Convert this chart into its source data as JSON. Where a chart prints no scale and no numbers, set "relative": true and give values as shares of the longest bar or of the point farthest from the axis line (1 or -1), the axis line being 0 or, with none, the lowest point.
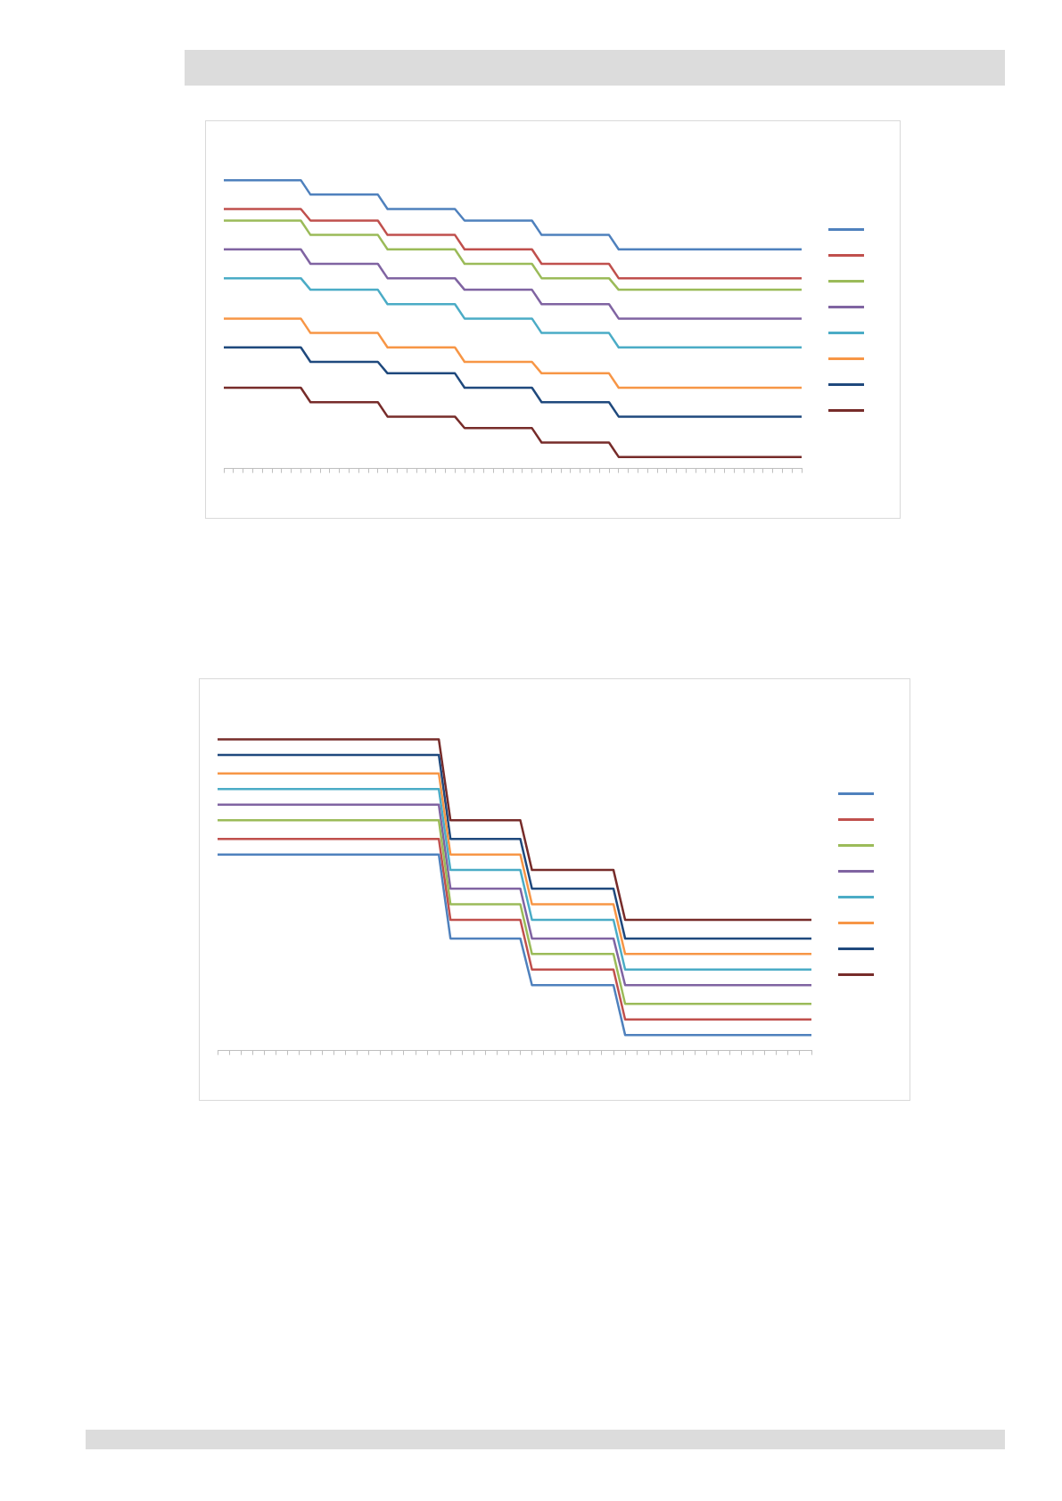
{
  "chart_data": [
    {
      "type": "line",
      "relative": true,
      "grid": false,
      "marker": "none",
      "line_style": "solid",
      "categories": [
        null,
        null,
        null,
        null,
        null,
        null,
        null,
        null,
        null,
        null,
        null,
        null,
        null,
        null,
        null,
        null,
        null,
        null,
        null,
        null,
        null,
        null,
        null,
        null,
        null,
        null,
        null,
        null,
        null,
        null,
        null,
        null,
        null,
        null,
        null,
        null,
        null,
        null,
        null,
        null,
        null,
        null,
        null,
        null,
        null,
        null,
        null,
        null,
        null,
        null,
        null,
        null,
        null,
        null,
        null,
        null,
        null,
        null,
        null,
        null,
        null
      ],
      "series": [
        {
          "color": "#4f81bd",
          "values": [
            1,
            1,
            1,
            1,
            1,
            1,
            1,
            1,
            1,
            0.95,
            0.95,
            0.95,
            0.95,
            0.95,
            0.95,
            0.95,
            0.95,
            0.9,
            0.9,
            0.9,
            0.9,
            0.9,
            0.9,
            0.9,
            0.9,
            0.86,
            0.86,
            0.86,
            0.86,
            0.86,
            0.86,
            0.86,
            0.86,
            0.81,
            0.81,
            0.81,
            0.81,
            0.81,
            0.81,
            0.81,
            0.81,
            0.76,
            0.76,
            0.76,
            0.76,
            0.76,
            0.76,
            0.76,
            0.76,
            0.76,
            0.76,
            0.76,
            0.76,
            0.76,
            0.76,
            0.76,
            0.76,
            0.76,
            0.76,
            0.76,
            0.76
          ]
        },
        {
          "color": "#c0504d",
          "values": [
            0.9,
            0.9,
            0.9,
            0.9,
            0.9,
            0.9,
            0.9,
            0.9,
            0.9,
            0.86,
            0.86,
            0.86,
            0.86,
            0.86,
            0.86,
            0.86,
            0.86,
            0.81,
            0.81,
            0.81,
            0.81,
            0.81,
            0.81,
            0.81,
            0.81,
            0.76,
            0.76,
            0.76,
            0.76,
            0.76,
            0.76,
            0.76,
            0.76,
            0.71,
            0.71,
            0.71,
            0.71,
            0.71,
            0.71,
            0.71,
            0.71,
            0.66,
            0.66,
            0.66,
            0.66,
            0.66,
            0.66,
            0.66,
            0.66,
            0.66,
            0.66,
            0.66,
            0.66,
            0.66,
            0.66,
            0.66,
            0.66,
            0.66,
            0.66,
            0.66,
            0.66
          ]
        },
        {
          "color": "#9bbb59",
          "values": [
            0.86,
            0.86,
            0.86,
            0.86,
            0.86,
            0.86,
            0.86,
            0.86,
            0.86,
            0.81,
            0.81,
            0.81,
            0.81,
            0.81,
            0.81,
            0.81,
            0.81,
            0.76,
            0.76,
            0.76,
            0.76,
            0.76,
            0.76,
            0.76,
            0.76,
            0.71,
            0.71,
            0.71,
            0.71,
            0.71,
            0.71,
            0.71,
            0.71,
            0.66,
            0.66,
            0.66,
            0.66,
            0.66,
            0.66,
            0.66,
            0.66,
            0.62,
            0.62,
            0.62,
            0.62,
            0.62,
            0.62,
            0.62,
            0.62,
            0.62,
            0.62,
            0.62,
            0.62,
            0.62,
            0.62,
            0.62,
            0.62,
            0.62,
            0.62,
            0.62,
            0.62
          ]
        },
        {
          "color": "#8064a2",
          "values": [
            0.76,
            0.76,
            0.76,
            0.76,
            0.76,
            0.76,
            0.76,
            0.76,
            0.76,
            0.71,
            0.71,
            0.71,
            0.71,
            0.71,
            0.71,
            0.71,
            0.71,
            0.66,
            0.66,
            0.66,
            0.66,
            0.66,
            0.66,
            0.66,
            0.66,
            0.62,
            0.62,
            0.62,
            0.62,
            0.62,
            0.62,
            0.62,
            0.62,
            0.57,
            0.57,
            0.57,
            0.57,
            0.57,
            0.57,
            0.57,
            0.57,
            0.52,
            0.52,
            0.52,
            0.52,
            0.52,
            0.52,
            0.52,
            0.52,
            0.52,
            0.52,
            0.52,
            0.52,
            0.52,
            0.52,
            0.52,
            0.52,
            0.52,
            0.52,
            0.52,
            0.52
          ]
        },
        {
          "color": "#4bacc6",
          "values": [
            0.66,
            0.66,
            0.66,
            0.66,
            0.66,
            0.66,
            0.66,
            0.66,
            0.66,
            0.62,
            0.62,
            0.62,
            0.62,
            0.62,
            0.62,
            0.62,
            0.62,
            0.57,
            0.57,
            0.57,
            0.57,
            0.57,
            0.57,
            0.57,
            0.57,
            0.52,
            0.52,
            0.52,
            0.52,
            0.52,
            0.52,
            0.52,
            0.52,
            0.47,
            0.47,
            0.47,
            0.47,
            0.47,
            0.47,
            0.47,
            0.47,
            0.42,
            0.42,
            0.42,
            0.42,
            0.42,
            0.42,
            0.42,
            0.42,
            0.42,
            0.42,
            0.42,
            0.42,
            0.42,
            0.42,
            0.42,
            0.42,
            0.42,
            0.42,
            0.42,
            0.42
          ]
        },
        {
          "color": "#f79646",
          "values": [
            0.52,
            0.52,
            0.52,
            0.52,
            0.52,
            0.52,
            0.52,
            0.52,
            0.52,
            0.47,
            0.47,
            0.47,
            0.47,
            0.47,
            0.47,
            0.47,
            0.47,
            0.42,
            0.42,
            0.42,
            0.42,
            0.42,
            0.42,
            0.42,
            0.42,
            0.37,
            0.37,
            0.37,
            0.37,
            0.37,
            0.37,
            0.37,
            0.37,
            0.33,
            0.33,
            0.33,
            0.33,
            0.33,
            0.33,
            0.33,
            0.33,
            0.28,
            0.28,
            0.28,
            0.28,
            0.28,
            0.28,
            0.28,
            0.28,
            0.28,
            0.28,
            0.28,
            0.28,
            0.28,
            0.28,
            0.28,
            0.28,
            0.28,
            0.28,
            0.28,
            0.28
          ]
        },
        {
          "color": "#1f497d",
          "values": [
            0.42,
            0.42,
            0.42,
            0.42,
            0.42,
            0.42,
            0.42,
            0.42,
            0.42,
            0.37,
            0.37,
            0.37,
            0.37,
            0.37,
            0.37,
            0.37,
            0.37,
            0.33,
            0.33,
            0.33,
            0.33,
            0.33,
            0.33,
            0.33,
            0.33,
            0.28,
            0.28,
            0.28,
            0.28,
            0.28,
            0.28,
            0.28,
            0.28,
            0.23,
            0.23,
            0.23,
            0.23,
            0.23,
            0.23,
            0.23,
            0.23,
            0.18,
            0.18,
            0.18,
            0.18,
            0.18,
            0.18,
            0.18,
            0.18,
            0.18,
            0.18,
            0.18,
            0.18,
            0.18,
            0.18,
            0.18,
            0.18,
            0.18,
            0.18,
            0.18,
            0.18
          ]
        },
        {
          "color": "#772c2a",
          "values": [
            0.28,
            0.28,
            0.28,
            0.28,
            0.28,
            0.28,
            0.28,
            0.28,
            0.28,
            0.23,
            0.23,
            0.23,
            0.23,
            0.23,
            0.23,
            0.23,
            0.23,
            0.18,
            0.18,
            0.18,
            0.18,
            0.18,
            0.18,
            0.18,
            0.18,
            0.14,
            0.14,
            0.14,
            0.14,
            0.14,
            0.14,
            0.14,
            0.14,
            0.09,
            0.09,
            0.09,
            0.09,
            0.09,
            0.09,
            0.09,
            0.09,
            0.04,
            0.04,
            0.04,
            0.04,
            0.04,
            0.04,
            0.04,
            0.04,
            0.04,
            0.04,
            0.04,
            0.04,
            0.04,
            0.04,
            0.04,
            0.04,
            0.04,
            0.04,
            0.04,
            0.04
          ]
        }
      ]
    },
    {
      "type": "line",
      "relative": true,
      "grid": false,
      "marker": "none",
      "line_style": "solid",
      "categories": [
        null,
        null,
        null,
        null,
        null,
        null,
        null,
        null,
        null,
        null,
        null,
        null,
        null,
        null,
        null,
        null,
        null,
        null,
        null,
        null,
        null,
        null,
        null,
        null,
        null,
        null,
        null,
        null,
        null,
        null,
        null,
        null,
        null,
        null,
        null,
        null,
        null,
        null,
        null,
        null,
        null,
        null,
        null,
        null,
        null,
        null,
        null,
        null,
        null,
        null,
        null,
        null
      ],
      "series": [
        {
          "color": "#4f81bd",
          "values": [
            0.63,
            0.63,
            0.63,
            0.63,
            0.63,
            0.63,
            0.63,
            0.63,
            0.63,
            0.63,
            0.63,
            0.63,
            0.63,
            0.63,
            0.63,
            0.63,
            0.63,
            0.63,
            0.63,
            0.63,
            0.36,
            0.36,
            0.36,
            0.36,
            0.36,
            0.36,
            0.36,
            0.21,
            0.21,
            0.21,
            0.21,
            0.21,
            0.21,
            0.21,
            0.21,
            0.05,
            0.05,
            0.05,
            0.05,
            0.05,
            0.05,
            0.05,
            0.05,
            0.05,
            0.05,
            0.05,
            0.05,
            0.05,
            0.05,
            0.05,
            0.05,
            0.05
          ]
        },
        {
          "color": "#c0504d",
          "values": [
            0.68,
            0.68,
            0.68,
            0.68,
            0.68,
            0.68,
            0.68,
            0.68,
            0.68,
            0.68,
            0.68,
            0.68,
            0.68,
            0.68,
            0.68,
            0.68,
            0.68,
            0.68,
            0.68,
            0.68,
            0.42,
            0.42,
            0.42,
            0.42,
            0.42,
            0.42,
            0.42,
            0.26,
            0.26,
            0.26,
            0.26,
            0.26,
            0.26,
            0.26,
            0.26,
            0.1,
            0.1,
            0.1,
            0.1,
            0.1,
            0.1,
            0.1,
            0.1,
            0.1,
            0.1,
            0.1,
            0.1,
            0.1,
            0.1,
            0.1,
            0.1,
            0.1
          ]
        },
        {
          "color": "#9bbb59",
          "values": [
            0.74,
            0.74,
            0.74,
            0.74,
            0.74,
            0.74,
            0.74,
            0.74,
            0.74,
            0.74,
            0.74,
            0.74,
            0.74,
            0.74,
            0.74,
            0.74,
            0.74,
            0.74,
            0.74,
            0.74,
            0.47,
            0.47,
            0.47,
            0.47,
            0.47,
            0.47,
            0.47,
            0.31,
            0.31,
            0.31,
            0.31,
            0.31,
            0.31,
            0.31,
            0.31,
            0.15,
            0.15,
            0.15,
            0.15,
            0.15,
            0.15,
            0.15,
            0.15,
            0.15,
            0.15,
            0.15,
            0.15,
            0.15,
            0.15,
            0.15,
            0.15,
            0.15
          ]
        },
        {
          "color": "#8064a2",
          "values": [
            0.79,
            0.79,
            0.79,
            0.79,
            0.79,
            0.79,
            0.79,
            0.79,
            0.79,
            0.79,
            0.79,
            0.79,
            0.79,
            0.79,
            0.79,
            0.79,
            0.79,
            0.79,
            0.79,
            0.79,
            0.52,
            0.52,
            0.52,
            0.52,
            0.52,
            0.52,
            0.52,
            0.36,
            0.36,
            0.36,
            0.36,
            0.36,
            0.36,
            0.36,
            0.36,
            0.21,
            0.21,
            0.21,
            0.21,
            0.21,
            0.21,
            0.21,
            0.21,
            0.21,
            0.21,
            0.21,
            0.21,
            0.21,
            0.21,
            0.21,
            0.21,
            0.21
          ]
        },
        {
          "color": "#4bacc6",
          "values": [
            0.84,
            0.84,
            0.84,
            0.84,
            0.84,
            0.84,
            0.84,
            0.84,
            0.84,
            0.84,
            0.84,
            0.84,
            0.84,
            0.84,
            0.84,
            0.84,
            0.84,
            0.84,
            0.84,
            0.84,
            0.58,
            0.58,
            0.58,
            0.58,
            0.58,
            0.58,
            0.58,
            0.42,
            0.42,
            0.42,
            0.42,
            0.42,
            0.42,
            0.42,
            0.42,
            0.26,
            0.26,
            0.26,
            0.26,
            0.26,
            0.26,
            0.26,
            0.26,
            0.26,
            0.26,
            0.26,
            0.26,
            0.26,
            0.26,
            0.26,
            0.26,
            0.26
          ]
        },
        {
          "color": "#f79646",
          "values": [
            0.89,
            0.89,
            0.89,
            0.89,
            0.89,
            0.89,
            0.89,
            0.89,
            0.89,
            0.89,
            0.89,
            0.89,
            0.89,
            0.89,
            0.89,
            0.89,
            0.89,
            0.89,
            0.89,
            0.89,
            0.63,
            0.63,
            0.63,
            0.63,
            0.63,
            0.63,
            0.63,
            0.47,
            0.47,
            0.47,
            0.47,
            0.47,
            0.47,
            0.47,
            0.47,
            0.31,
            0.31,
            0.31,
            0.31,
            0.31,
            0.31,
            0.31,
            0.31,
            0.31,
            0.31,
            0.31,
            0.31,
            0.31,
            0.31,
            0.31,
            0.31,
            0.31
          ]
        },
        {
          "color": "#1f497d",
          "values": [
            0.95,
            0.95,
            0.95,
            0.95,
            0.95,
            0.95,
            0.95,
            0.95,
            0.95,
            0.95,
            0.95,
            0.95,
            0.95,
            0.95,
            0.95,
            0.95,
            0.95,
            0.95,
            0.95,
            0.95,
            0.68,
            0.68,
            0.68,
            0.68,
            0.68,
            0.68,
            0.68,
            0.52,
            0.52,
            0.52,
            0.52,
            0.52,
            0.52,
            0.52,
            0.52,
            0.36,
            0.36,
            0.36,
            0.36,
            0.36,
            0.36,
            0.36,
            0.36,
            0.36,
            0.36,
            0.36,
            0.36,
            0.36,
            0.36,
            0.36,
            0.36,
            0.36
          ]
        },
        {
          "color": "#772c2a",
          "values": [
            1,
            1,
            1,
            1,
            1,
            1,
            1,
            1,
            1,
            1,
            1,
            1,
            1,
            1,
            1,
            1,
            1,
            1,
            1,
            1,
            0.74,
            0.74,
            0.74,
            0.74,
            0.74,
            0.74,
            0.74,
            0.58,
            0.58,
            0.58,
            0.58,
            0.58,
            0.58,
            0.58,
            0.58,
            0.42,
            0.42,
            0.42,
            0.42,
            0.42,
            0.42,
            0.42,
            0.42,
            0.42,
            0.42,
            0.42,
            0.42,
            0.42,
            0.42,
            0.42,
            0.42,
            0.42
          ]
        }
      ]
    }
  ]
}
